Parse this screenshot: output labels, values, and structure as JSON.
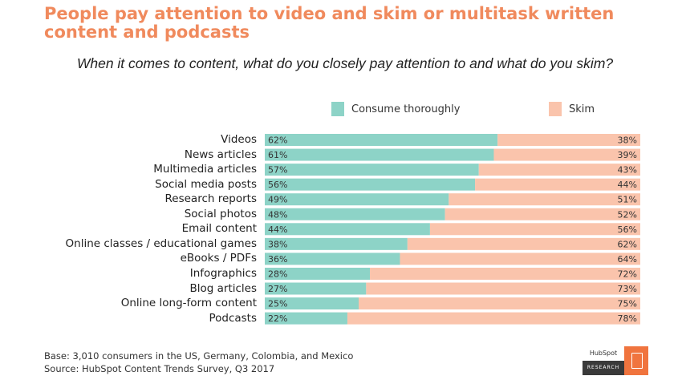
{
  "headline": "People pay attention to video and skim or multitask written content and podcasts",
  "chart_data": {
    "type": "bar",
    "orientation": "horizontal",
    "stacked": true,
    "title": "When it comes to content, what do you closely pay attention to and what do you skim?",
    "categories": [
      "Videos",
      "News articles",
      "Multimedia articles",
      "Social media posts",
      "Research reports",
      "Social photos",
      "Email content",
      "Online classes / educational games",
      "eBooks / PDFs",
      "Infographics",
      "Blog articles",
      "Online long-form content",
      "Podcasts"
    ],
    "series": [
      {
        "name": "Consume thoroughly",
        "color": "#8dd3c7",
        "values": [
          62,
          61,
          57,
          56,
          49,
          48,
          44,
          38,
          36,
          28,
          27,
          25,
          22
        ]
      },
      {
        "name": "Skim",
        "color": "#fac4ac",
        "values": [
          38,
          39,
          43,
          44,
          51,
          52,
          56,
          62,
          64,
          72,
          73,
          75,
          78
        ]
      }
    ],
    "value_suffix": "%",
    "xlim": [
      0,
      100
    ],
    "legend_position": "top",
    "grid": false
  },
  "footer": {
    "base": "Base: 3,010 consumers in the US, Germany, Colombia, and Mexico",
    "source": "Source: HubSpot Content Trends Survey, Q3 2017"
  },
  "logo": {
    "brand": "HubSpot",
    "tag": "RESEARCH"
  }
}
